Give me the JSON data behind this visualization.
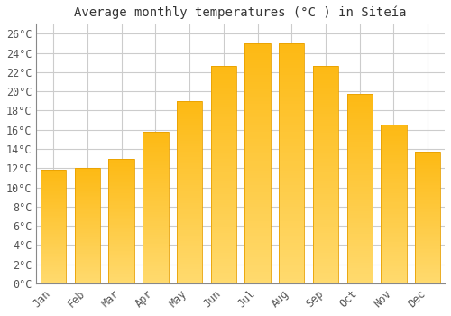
{
  "title": "Average monthly temperatures (°C ) in SiteÃ­eia",
  "title_display": "Average monthly temperatures (°C ) in Siteía",
  "months": [
    "Jan",
    "Feb",
    "Mar",
    "Apr",
    "May",
    "Jun",
    "Jul",
    "Aug",
    "Sep",
    "Oct",
    "Nov",
    "Dec"
  ],
  "values": [
    11.8,
    12.0,
    13.0,
    15.8,
    19.0,
    22.7,
    25.0,
    25.0,
    22.7,
    19.7,
    16.5,
    13.7
  ],
  "bar_color_top": "#FDB913",
  "bar_color_bottom": "#FFDA6E",
  "bar_edge_color": "#E8A000",
  "ylim": [
    0,
    27
  ],
  "yticks": [
    0,
    2,
    4,
    6,
    8,
    10,
    12,
    14,
    16,
    18,
    20,
    22,
    24,
    26
  ],
  "ytick_labels": [
    "0°C",
    "2°C",
    "4°C",
    "6°C",
    "8°C",
    "10°C",
    "12°C",
    "14°C",
    "16°C",
    "18°C",
    "20°C",
    "22°C",
    "24°C",
    "26°C"
  ],
  "grid_color": "#cccccc",
  "background_color": "#ffffff",
  "title_fontsize": 10,
  "tick_fontsize": 8.5,
  "font_family": "monospace",
  "bar_width": 0.75,
  "figsize": [
    5.0,
    3.5
  ],
  "dpi": 100
}
